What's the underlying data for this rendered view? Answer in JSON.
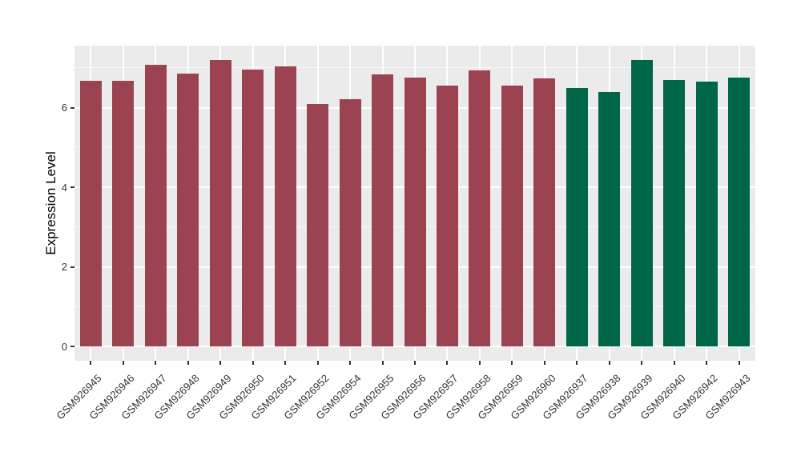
{
  "chart_data": {
    "type": "bar",
    "title": "",
    "xlabel": "",
    "ylabel": "Expression Level",
    "ylim": [
      0,
      7.56
    ],
    "yticks": [
      0,
      2,
      4,
      6
    ],
    "yminorticks": [
      1,
      3,
      5,
      7
    ],
    "grid": "on",
    "legend": "none",
    "panel_background": "#ebebeb",
    "gridline_color": "#ffffff",
    "categories": [
      "GSM926945",
      "GSM926946",
      "GSM926947",
      "GSM926948",
      "GSM926949",
      "GSM926950",
      "GSM926951",
      "GSM926952",
      "GSM926954",
      "GSM926955",
      "GSM926956",
      "GSM926957",
      "GSM926958",
      "GSM926959",
      "GSM926960",
      "GSM926937",
      "GSM926938",
      "GSM926939",
      "GSM926940",
      "GSM926942",
      "GSM926943"
    ],
    "values": [
      6.67,
      6.67,
      7.08,
      6.86,
      7.19,
      6.95,
      7.04,
      6.1,
      6.21,
      6.83,
      6.76,
      6.55,
      6.94,
      6.55,
      6.73,
      6.49,
      6.39,
      7.2,
      6.7,
      6.66,
      6.75
    ],
    "groups": [
      "group1",
      "group1",
      "group1",
      "group1",
      "group1",
      "group1",
      "group1",
      "group1",
      "group1",
      "group1",
      "group1",
      "group1",
      "group1",
      "group1",
      "group1",
      "group2",
      "group2",
      "group2",
      "group2",
      "group2",
      "group2"
    ],
    "group_colors": {
      "group1": "#9B4350",
      "group2": "#006648"
    }
  }
}
